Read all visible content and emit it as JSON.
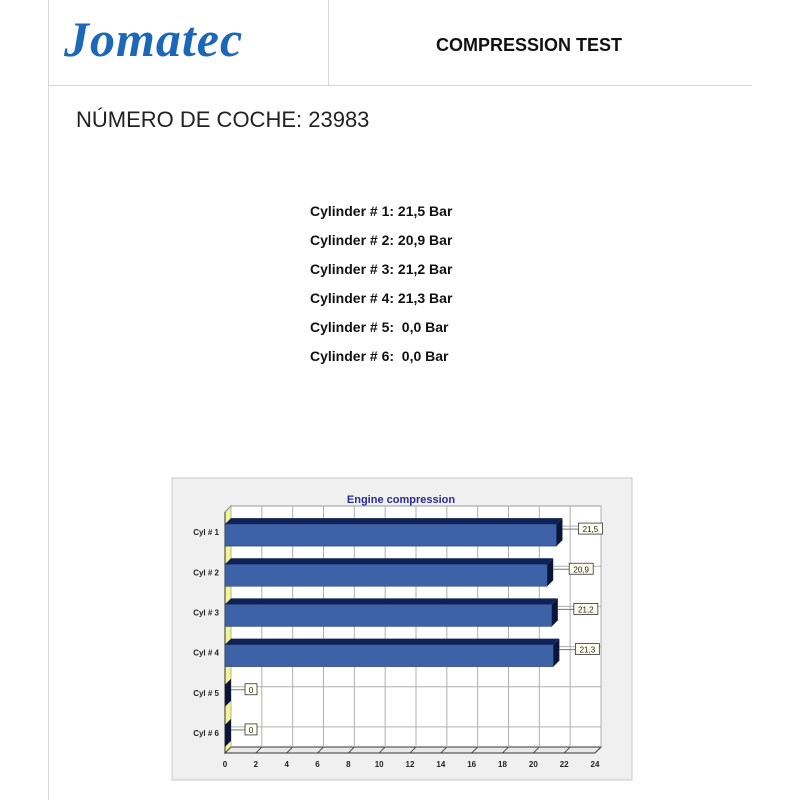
{
  "header": {
    "logo_text": "Jomatec",
    "title": "COMPRESSION TEST"
  },
  "car_number": "NÚMERO DE COCHE: 23983",
  "readings": [
    "Cylinder # 1: 21,5 Bar",
    "Cylinder # 2: 20,9 Bar",
    "Cylinder # 3: 21,2 Bar",
    "Cylinder # 4: 21,3 Bar",
    "Cylinder # 5:  0,0 Bar",
    "Cylinder # 6:  0,0 Bar"
  ],
  "chart_data": {
    "type": "bar",
    "orientation": "horizontal",
    "title": "Engine compression",
    "categories": [
      "Cyl # 1",
      "Cyl # 2",
      "Cyl # 3",
      "Cyl # 4",
      "Cyl # 5",
      "Cyl # 6"
    ],
    "values": [
      21.5,
      20.9,
      21.2,
      21.3,
      0,
      0
    ],
    "data_labels": [
      "21,5",
      "20,9",
      "21,2",
      "21,3",
      "0",
      "0"
    ],
    "xlim": [
      0,
      24
    ],
    "xticks": [
      "0",
      "2",
      "4",
      "6",
      "8",
      "10",
      "12",
      "14",
      "16",
      "18",
      "20",
      "22",
      "24"
    ],
    "grid": true,
    "colors": {
      "bar": "#3d62a8",
      "bar_top": "#0f2257",
      "title": "#2a2a9a",
      "wall": "#f4f490"
    }
  }
}
